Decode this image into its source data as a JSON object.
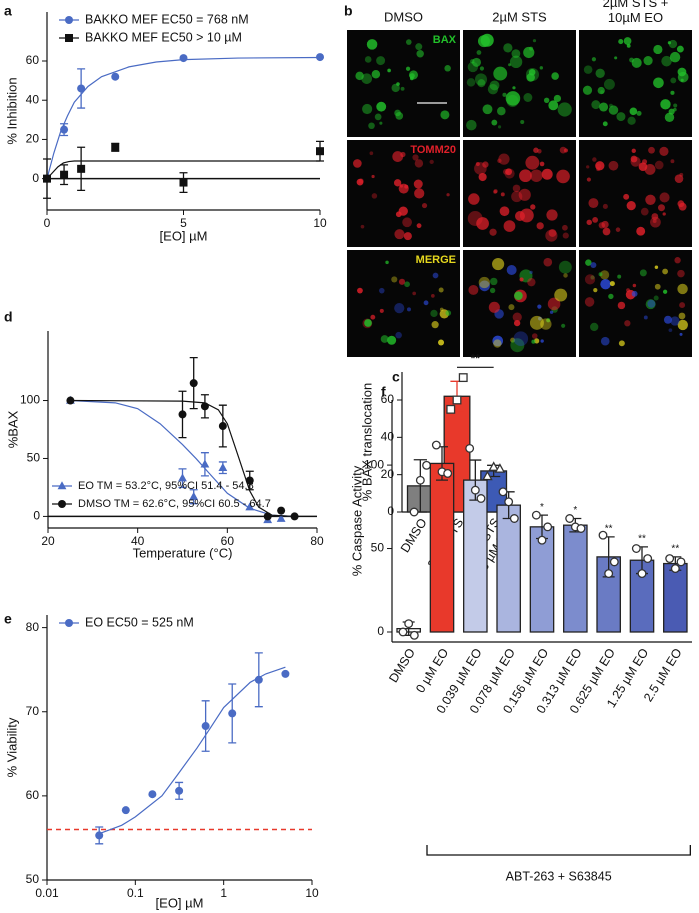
{
  "chart_data": [
    {
      "type": "scatter",
      "panel": "a",
      "xlabel": "[EO]  µM",
      "ylabel": "% Inhibition",
      "xlim": [
        0,
        10
      ],
      "ylim": [
        -16,
        85
      ],
      "xticks": [
        0,
        5,
        10
      ],
      "yticks": [
        0,
        20,
        40,
        60
      ],
      "zero_line": true,
      "legend": "upper left",
      "series": [
        {
          "name": "BAKKO MEF EC50 = 768 nM",
          "color": "#4a6bc4",
          "marker": "circle",
          "x": [
            0,
            0.625,
            1.25,
            2.5,
            5,
            10
          ],
          "values": [
            0,
            25,
            46,
            52,
            61.5,
            62
          ],
          "errors": [
            0,
            3,
            10,
            0,
            0,
            0
          ],
          "fit": {
            "x": [
              0,
              0.25,
              0.5,
              0.75,
              1,
              1.5,
              2,
              3,
              4,
              5,
              7,
              10
            ],
            "values": [
              0,
              13,
              24,
              32,
              39,
              47,
              52,
              57,
              59.5,
              60.7,
              61.5,
              61.8
            ]
          }
        },
        {
          "name": "BAKKO MEF EC50 > 10 µM",
          "color": "#111111",
          "marker": "square",
          "x": [
            0,
            0.625,
            1.25,
            2.5,
            5,
            10
          ],
          "values": [
            0,
            2,
            5,
            16,
            -2,
            14
          ],
          "errors": [
            10,
            5,
            11,
            2,
            5,
            5
          ],
          "fit": {
            "x": [
              0,
              0.2,
              0.4,
              0.6,
              0.8,
              1,
              10
            ],
            "values": [
              0,
              3,
              6,
              8,
              8.7,
              9,
              9
            ]
          }
        }
      ]
    },
    {
      "type": "image",
      "panel": "b",
      "columns": [
        "DMSO",
        "2µM STS",
        "2µM STS +\n10µM EO"
      ],
      "rows": [
        "BAX",
        "TOMM20",
        "MERGE"
      ],
      "row_colors": [
        "#22c02a",
        "#e0202a",
        "#e6d81e"
      ]
    },
    {
      "type": "bar",
      "panel": "c",
      "ylabel": "% BAX translocation",
      "categories": [
        "DMSO",
        "2 µM STS",
        "2 µM STS\n+ 10 µM EO"
      ],
      "values": [
        14,
        62,
        22
      ],
      "errors": [
        14,
        8,
        3
      ],
      "colors": [
        "#7f7f7f",
        "#e8392b",
        "#3d5ab5"
      ],
      "points": [
        [
          0,
          17,
          25
        ],
        [
          55,
          60,
          72
        ],
        [
          19,
          24,
          23
        ]
      ],
      "point_markers": [
        "circle",
        "square",
        "triangle"
      ],
      "ylim": [
        0,
        75
      ],
      "yticks": [
        0,
        20,
        40,
        60
      ],
      "significance": {
        "label": "**",
        "between": [
          1,
          2
        ]
      }
    },
    {
      "type": "scatter",
      "panel": "d",
      "xlabel": "Temperature (°C)",
      "ylabel": "%BAX",
      "xlim": [
        20,
        80
      ],
      "ylim": [
        -10,
        160
      ],
      "xticks": [
        20,
        40,
        60,
        80
      ],
      "yticks": [
        0,
        50,
        100
      ],
      "zero_line": true,
      "legend": "lower left",
      "series": [
        {
          "name": "EO TM = 53.2°C, 95%CI 51.4 - 54.8",
          "color": "#4a6bc4",
          "marker": "triangle",
          "x": [
            25,
            50,
            52.5,
            55,
            59,
            65,
            69,
            72
          ],
          "values": [
            100,
            33,
            17,
            45,
            42,
            8,
            -3,
            -2
          ],
          "errors": [
            0,
            8,
            6,
            10,
            5,
            0,
            0,
            0
          ],
          "fit": {
            "x": [
              25,
              35,
              40,
              45,
              50,
              53,
              56,
              60,
              65,
              70,
              75
            ],
            "values": [
              100,
              98,
              93,
              80,
              62,
              50,
              37,
              20,
              7,
              1,
              0
            ]
          }
        },
        {
          "name": "DMSO TM = 62.6°C, 95%CI 60.5 - 64.7",
          "color": "#111111",
          "marker": "circle",
          "x": [
            25,
            50,
            52.5,
            55,
            59,
            65,
            69,
            72,
            75
          ],
          "values": [
            100,
            88,
            115,
            95,
            78,
            31,
            0,
            5,
            0
          ],
          "errors": [
            0,
            20,
            22,
            10,
            18,
            8,
            0,
            0,
            0
          ],
          "fit": {
            "x": [
              25,
              50,
              55,
              58,
              60,
              62.6,
              65,
              67,
              70,
              75
            ],
            "values": [
              100,
              99.5,
              98,
              92,
              80,
              50,
              22,
              8,
              1,
              0
            ]
          }
        }
      ]
    },
    {
      "type": "scatter",
      "panel": "e",
      "xlabel": "[EO]  µM",
      "ylabel": "% Viability",
      "log_x": true,
      "xlim": [
        0.01,
        10
      ],
      "ylim": [
        50,
        81.5
      ],
      "xticks": [
        0.01,
        0.1,
        1,
        10
      ],
      "yticks": [
        50,
        60,
        70,
        80
      ],
      "reference_line": 56,
      "reference_color": "#e8392b",
      "legend": "upper left",
      "series": [
        {
          "name": "EO EC50 = 525 nM",
          "color": "#4a6bc4",
          "marker": "circle",
          "x": [
            0.039,
            0.078,
            0.156,
            0.313,
            0.625,
            1.25,
            2.5,
            5
          ],
          "values": [
            55.3,
            58.3,
            60.2,
            60.6,
            68.3,
            69.8,
            73.8,
            74.5
          ],
          "errors": [
            1,
            0,
            0,
            1,
            3,
            3.5,
            3.2,
            0
          ],
          "fit": {
            "x": [
              0.039,
              0.07,
              0.1,
              0.2,
              0.3,
              0.5,
              0.7,
              1,
              2,
              3,
              5
            ],
            "values": [
              55.5,
              56.5,
              57.5,
              60,
              62.5,
              65.7,
              68,
              70.5,
              73.5,
              74.5,
              75.3
            ]
          }
        }
      ]
    },
    {
      "type": "bar",
      "panel": "f",
      "ylabel": "% Caspase Activity",
      "categories": [
        "DMSO",
        "0 µM EO",
        "0.039 µM EO",
        "0.078 µM EO",
        "0.156 µM EO",
        "0.313 µM EO",
        "0.625 µM EO",
        "1.25 µM EO",
        "2.5 µM EO"
      ],
      "values": [
        2,
        101,
        91,
        76,
        63,
        64,
        45,
        43,
        41
      ],
      "errors": [
        4,
        10,
        12,
        8,
        7,
        4,
        12,
        8,
        4
      ],
      "colors": [
        "#ffffff",
        "#e8392b",
        "#c3cbe8",
        "#aab5df",
        "#8f9dd5",
        "#7c8ccd",
        "#6a7bc4",
        "#5a6cbd",
        "#4a5bb3"
      ],
      "points": [
        [
          0,
          5,
          -2
        ],
        [
          112,
          96,
          95
        ],
        [
          110,
          85,
          80
        ],
        [
          84,
          78,
          68
        ],
        [
          70,
          55,
          63
        ],
        [
          68,
          63,
          62
        ],
        [
          58,
          35,
          42
        ],
        [
          50,
          35,
          44
        ],
        [
          44,
          38,
          42
        ]
      ],
      "point_markers": [
        "circle",
        "circle",
        "circle",
        "circle",
        "circle",
        "circle",
        "circle",
        "circle",
        "circle"
      ],
      "annotations": [
        null,
        null,
        null,
        null,
        "*",
        "*",
        "**",
        "**",
        "**"
      ],
      "ylim": [
        -6,
        139
      ],
      "yticks": [
        0,
        50,
        100
      ],
      "group_label": "ABT-263 + S63845",
      "group_range": [
        1,
        8
      ]
    }
  ]
}
